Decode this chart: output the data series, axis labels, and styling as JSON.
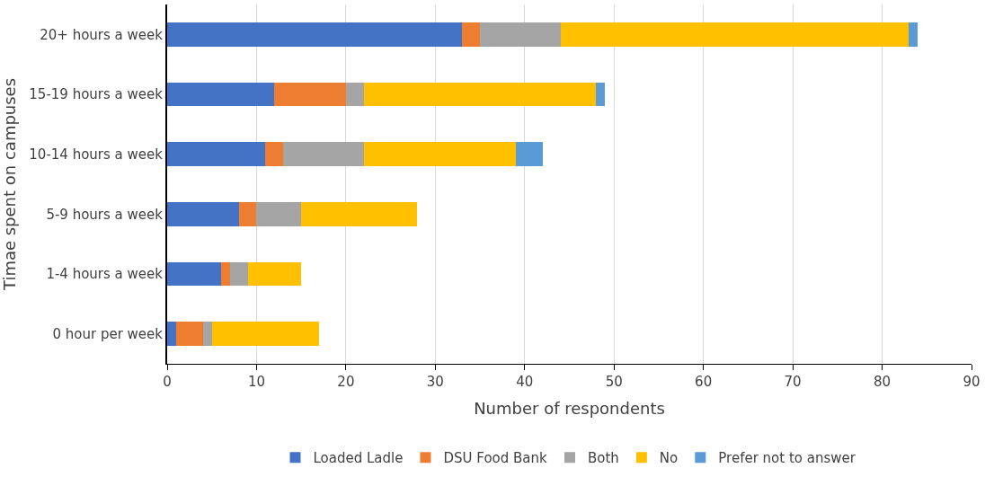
{
  "chart_data": {
    "type": "bar",
    "orientation": "horizontal",
    "stacked": true,
    "xlabel": "Number of respondents",
    "ylabel": "Timae spent on campuses",
    "categories": [
      "20+ hours a week",
      "15-19 hours a week",
      "10-14 hours a week",
      "5-9 hours a week",
      "1-4 hours a week",
      "0 hour per week"
    ],
    "series": [
      {
        "name": "Loaded Ladle",
        "color": "#4472c4",
        "values": [
          33,
          12,
          11,
          8,
          6,
          1
        ]
      },
      {
        "name": "DSU Food Bank",
        "color": "#ed7d31",
        "values": [
          2,
          8,
          2,
          2,
          1,
          3
        ]
      },
      {
        "name": "Both",
        "color": "#a5a5a5",
        "values": [
          9,
          2,
          9,
          5,
          2,
          1
        ]
      },
      {
        "name": "No",
        "color": "#ffc000",
        "values": [
          39,
          26,
          17,
          13,
          6,
          12
        ]
      },
      {
        "name": "Prefer not to answer",
        "color": "#5b9bd5",
        "values": [
          1,
          1,
          3,
          0,
          0,
          0
        ]
      }
    ],
    "xlim": [
      0,
      90
    ],
    "xticks": [
      0,
      10,
      20,
      30,
      40,
      50,
      60,
      70,
      80,
      90
    ],
    "grid": "x",
    "legend": "bottom"
  }
}
